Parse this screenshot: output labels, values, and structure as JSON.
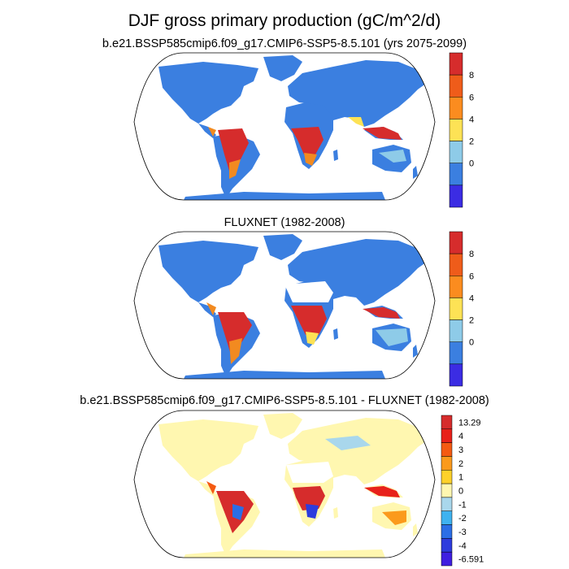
{
  "title": "DJF gross primary production (gC/m^2/d)",
  "panels": [
    {
      "subtitle": "b.e21.BSSP585cmip6.f09_g17.CMIP6-SSP5-8.5.101 (yrs 2075-2099)",
      "colorbar": {
        "labels": [
          "8",
          "6",
          "4",
          "2",
          "0"
        ],
        "colors": [
          "#d62c2c",
          "#ef5c1a",
          "#fb8c1f",
          "#fde255",
          "#8ecbe8",
          "#3b7fe0",
          "#3b2ce3"
        ]
      }
    },
    {
      "subtitle": "FLUXNET (1982-2008)",
      "colorbar": {
        "labels": [
          "8",
          "6",
          "4",
          "2",
          "0"
        ],
        "colors": [
          "#d62c2c",
          "#ef5c1a",
          "#fb8c1f",
          "#fde255",
          "#8ecbe8",
          "#3b7fe0",
          "#3b2ce3"
        ]
      }
    },
    {
      "subtitle": "b.e21.BSSP585cmip6.f09_g17.CMIP6-SSP5-8.5.101 - FLUXNET (1982-2008)",
      "colorbar": {
        "labels": [
          "13.29",
          "4",
          "3",
          "2",
          "1",
          "0",
          "-1",
          "-2",
          "-3",
          "-4",
          "-6.591"
        ],
        "colors": [
          "#d62c2c",
          "#e8211a",
          "#f45a12",
          "#fb9a1c",
          "#fdd12a",
          "#fff7b0",
          "#a9d7ec",
          "#3fb2f0",
          "#2b6ee6",
          "#2d3cdd",
          "#3f1fe0"
        ]
      }
    }
  ],
  "colors": {
    "ocean": "#ffffff",
    "land_low": "#3b7fe0",
    "land_mid": "#8ecbe8",
    "land_yellow": "#fde255",
    "land_orange": "#f28a20",
    "land_high": "#d62c2c",
    "diff_base": "#fff7b0"
  }
}
